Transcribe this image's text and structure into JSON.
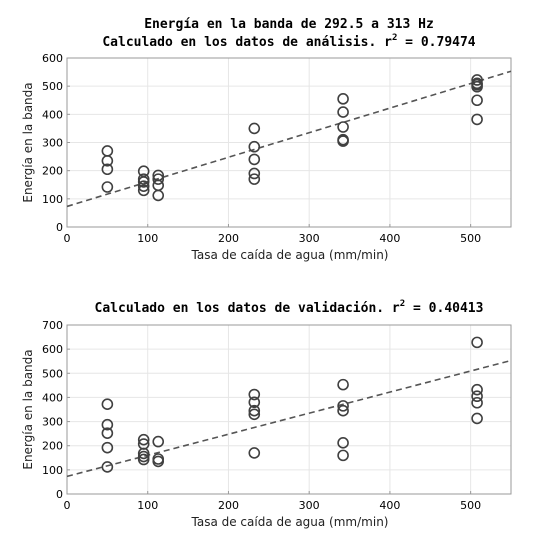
{
  "chart_data": [
    {
      "type": "scatter",
      "title_line1": "Energía en la banda de 292.5 a 313 Hz",
      "title_line2_prefix": "Calculado en los datos de análisis. r",
      "title_sup": "2",
      "title_line2_suffix": " = 0.79474",
      "xlabel": "Tasa de caída de agua (mm/min)",
      "ylabel": "Energía en la banda",
      "xlim": [
        0,
        550
      ],
      "ylim": [
        0,
        600
      ],
      "xticks": [
        0,
        100,
        200,
        300,
        400,
        500
      ],
      "yticks": [
        0,
        100,
        200,
        300,
        400,
        500,
        600
      ],
      "grid": true,
      "points": {
        "x": [
          50,
          50,
          50,
          50,
          95,
          95,
          95,
          95,
          95,
          113,
          113,
          113,
          113,
          232,
          232,
          232,
          232,
          232,
          342,
          342,
          342,
          342,
          342,
          508,
          508,
          508,
          508,
          508,
          508
        ],
        "y": [
          270,
          235,
          205,
          142,
          198,
          170,
          160,
          145,
          130,
          183,
          170,
          148,
          112,
          350,
          285,
          240,
          190,
          170,
          455,
          408,
          355,
          310,
          305,
          522,
          510,
          498,
          450,
          382,
          505
        ]
      },
      "fit_line": {
        "x": [
          0,
          550
        ],
        "y": [
          73,
          553
        ]
      },
      "colors": {
        "markers": "#404040",
        "fit": "#555555"
      }
    },
    {
      "type": "scatter",
      "title_prefix": "Calculado en los datos de validación. r",
      "title_sup": "2",
      "title_suffix": " = 0.40413",
      "xlabel": "Tasa de caída de agua (mm/min)",
      "ylabel": "Energía en la banda",
      "xlim": [
        0,
        550
      ],
      "ylim": [
        0,
        700
      ],
      "xticks": [
        0,
        100,
        200,
        300,
        400,
        500
      ],
      "yticks": [
        0,
        100,
        200,
        300,
        400,
        500,
        600,
        700
      ],
      "grid": true,
      "points": {
        "x": [
          50,
          50,
          50,
          50,
          50,
          95,
          95,
          95,
          95,
          95,
          113,
          113,
          113,
          232,
          232,
          232,
          232,
          232,
          342,
          342,
          342,
          342,
          342,
          508,
          508,
          508,
          508,
          508
        ],
        "y": [
          372,
          287,
          252,
          192,
          112,
          225,
          207,
          168,
          155,
          143,
          217,
          145,
          135,
          412,
          380,
          345,
          330,
          170,
          453,
          365,
          345,
          212,
          160,
          628,
          432,
          405,
          378,
          313
        ]
      },
      "fit_line": {
        "x": [
          0,
          550
        ],
        "y": [
          73,
          553
        ]
      },
      "colors": {
        "markers": "#404040",
        "fit": "#555555"
      }
    }
  ]
}
